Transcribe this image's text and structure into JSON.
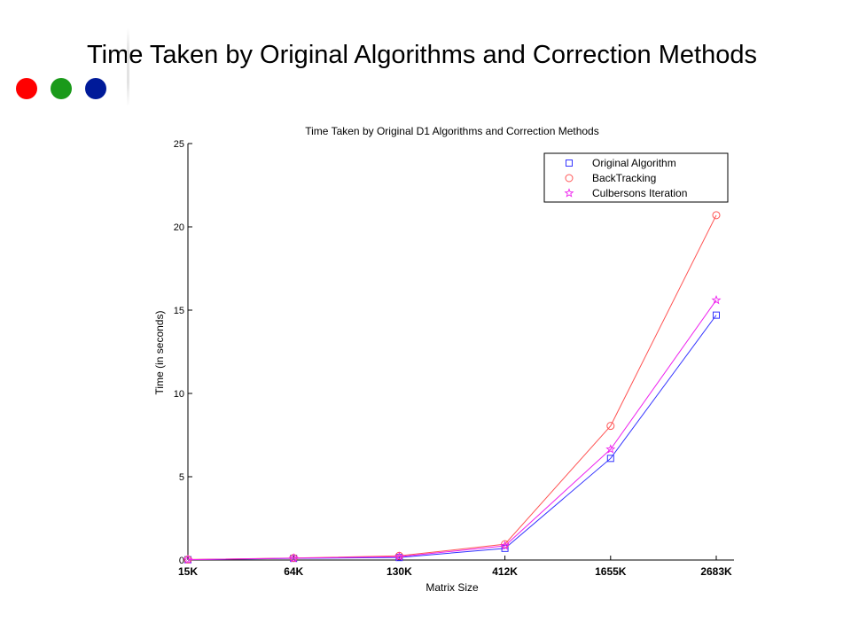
{
  "slide": {
    "title": "Time Taken by  Original  Algorithms and Correction Methods",
    "dots": [
      {
        "name": "red-dot",
        "color": "#ff0000"
      },
      {
        "name": "green-dot",
        "color": "#1a9a1a"
      },
      {
        "name": "blue-dot",
        "color": "#001a99"
      }
    ]
  },
  "chart_data": {
    "type": "line",
    "title": "Time Taken by Original D1 Algorithms and Correction Methods",
    "xlabel": "Matrix Size",
    "ylabel": "Time (in seconds)",
    "categories": [
      "15K",
      "64K",
      "130K",
      "412K",
      "1655K",
      "2683K"
    ],
    "ylim": [
      0,
      25
    ],
    "yticks": [
      "0",
      "5",
      "10",
      "15",
      "20",
      "25"
    ],
    "grid": false,
    "legend_position": "top-right",
    "series": [
      {
        "name": "Original Algorithm",
        "color": "#3333ff",
        "marker": "square",
        "values": [
          0.02,
          0.1,
          0.15,
          0.7,
          6.1,
          14.7
        ]
      },
      {
        "name": "BackTracking",
        "color": "#ff5555",
        "marker": "circle",
        "values": [
          0.03,
          0.12,
          0.25,
          0.95,
          8.05,
          20.7
        ]
      },
      {
        "name": "Culbersons Iteration",
        "color": "#ee22ee",
        "marker": "star",
        "values": [
          0.02,
          0.11,
          0.2,
          0.85,
          6.65,
          15.6
        ]
      }
    ]
  }
}
